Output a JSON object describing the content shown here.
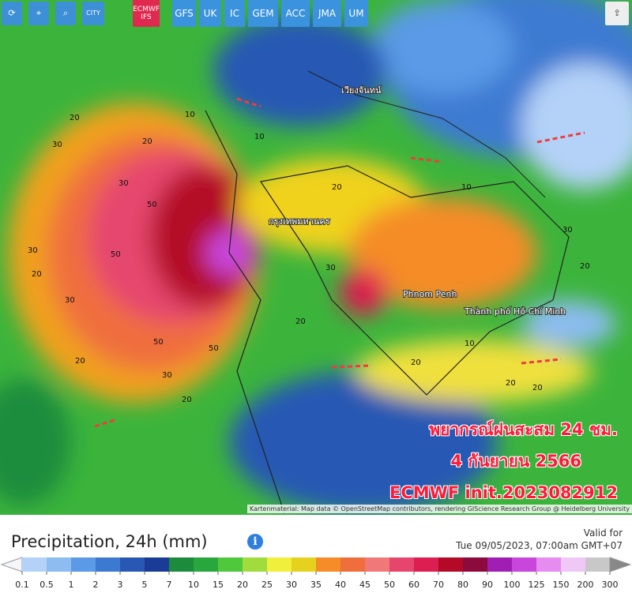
{
  "toolbar": {
    "city": "CITY",
    "models": [
      "ECMWF IFS",
      "GFS",
      "UK",
      "IC",
      "GEM",
      "ACC",
      "JMA",
      "UM"
    ]
  },
  "map_labels": {
    "places": [
      "Phnom Penh",
      "Thành phố Hồ Chí Minh",
      "กรุงเทพมหานคร",
      "เวียงจันทน์"
    ],
    "contours": [
      20,
      30,
      10,
      20,
      30,
      50,
      50,
      30,
      20,
      30,
      50,
      50,
      30,
      20,
      10,
      20,
      30,
      20,
      20,
      10,
      20,
      30,
      20,
      20,
      10,
      20
    ]
  },
  "overlay": [
    "พยากรณ์ฝนสะสม 24 ชม.",
    "4 กันยายน 2566",
    "ECMWF init.2023082912"
  ],
  "attribution": "Kartenmaterial: Map data © OpenStreetMap contributors, rendering GIScience Research Group @ Heidelberg University",
  "legend": {
    "title": "Precipitation, 24h (mm)",
    "valid_label": "Valid for",
    "valid_time": "Tue 09/05/2023, 07:00am GMT+07",
    "ticks": [
      0.1,
      0.5,
      1,
      2,
      3,
      5,
      7,
      10,
      15,
      20,
      25,
      30,
      35,
      40,
      45,
      50,
      60,
      70,
      80,
      90,
      100,
      125,
      150,
      200,
      300
    ],
    "colors": [
      "#f4f6fa",
      "#b4d2f8",
      "#8cbcf0",
      "#5a9ae6",
      "#3c7ad2",
      "#2858b4",
      "#1a3c96",
      "#1c8c3c",
      "#28a83c",
      "#50c83c",
      "#a0dc3c",
      "#f0f03c",
      "#e6d21e",
      "#f58c28",
      "#f06e3c",
      "#f07878",
      "#e6466e",
      "#dc1e50",
      "#b40a28",
      "#8c0a3c",
      "#a01eb4",
      "#c846dc",
      "#e68cf0",
      "#f0c8f8",
      "#c8c8c8",
      "#888888"
    ]
  }
}
